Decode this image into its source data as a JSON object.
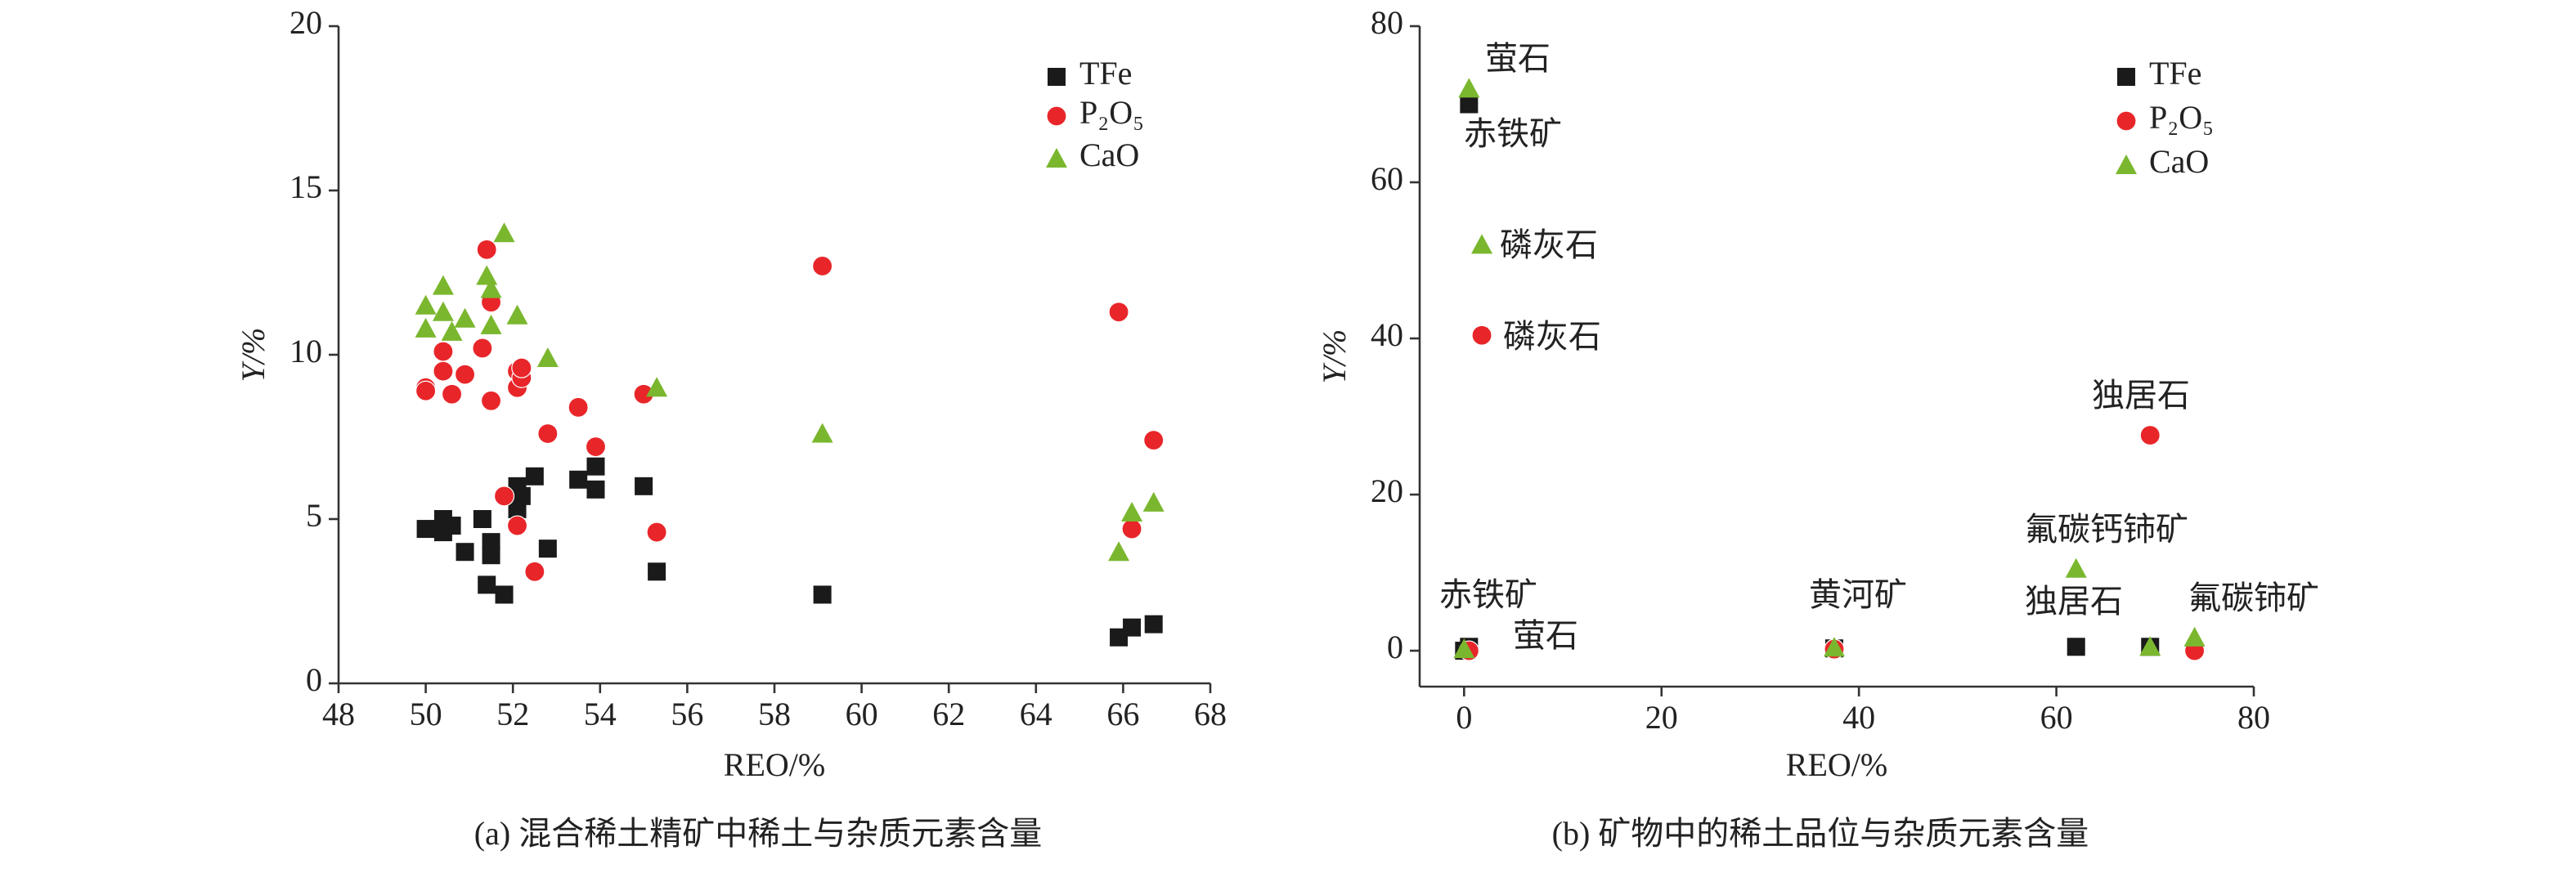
{
  "chart_data": [
    {
      "type": "scatter",
      "xlabel": "REO/%",
      "ylabel": "Y/%",
      "caption": "(a) 混合稀土精矿中稀土与杂质元素含量",
      "xlim": [
        48,
        68
      ],
      "xticks": [
        48,
        50,
        52,
        54,
        56,
        58,
        60,
        62,
        64,
        66,
        68
      ],
      "ylim": [
        0,
        20
      ],
      "yticks": [
        0,
        5,
        10,
        15,
        20
      ],
      "legend": "upper right",
      "series": [
        {
          "name": "TFe",
          "color": "#1a1a1a",
          "marker": "square",
          "x": [
            50.0,
            50.4,
            50.4,
            50.6,
            50.9,
            51.3,
            51.4,
            51.5,
            51.5,
            51.8,
            52.1,
            52.1,
            52.2,
            52.5,
            52.8,
            53.5,
            53.9,
            53.9,
            55.0,
            55.3,
            59.1,
            65.9,
            66.2,
            66.7
          ],
          "values": [
            4.7,
            5.0,
            4.6,
            4.8,
            4.0,
            5.0,
            3.0,
            4.3,
            3.9,
            2.7,
            5.3,
            6.0,
            5.7,
            6.3,
            4.1,
            6.2,
            6.6,
            5.9,
            6.0,
            3.4,
            2.7,
            1.4,
            1.7,
            1.8
          ]
        },
        {
          "name": "P₂O₅",
          "color": "#e8262a",
          "marker": "circle",
          "x": [
            50.0,
            50.0,
            50.4,
            50.4,
            50.6,
            50.9,
            51.3,
            51.4,
            51.5,
            51.5,
            51.8,
            52.1,
            52.1,
            52.1,
            52.2,
            52.2,
            52.5,
            52.8,
            53.5,
            53.9,
            55.0,
            55.3,
            59.1,
            65.9,
            66.2,
            66.7
          ],
          "values": [
            9.0,
            8.9,
            10.1,
            9.5,
            8.8,
            9.4,
            10.2,
            13.2,
            11.6,
            8.6,
            5.7,
            9.0,
            4.8,
            9.5,
            9.3,
            9.6,
            3.4,
            7.6,
            8.4,
            7.2,
            8.8,
            4.6,
            12.7,
            11.3,
            4.7,
            7.4
          ]
        },
        {
          "name": "CaO",
          "color": "#7ab72e",
          "marker": "triangle",
          "x": [
            50.0,
            50.0,
            50.4,
            50.4,
            50.6,
            50.9,
            51.4,
            51.5,
            51.5,
            51.8,
            52.1,
            52.8,
            55.3,
            59.1,
            65.9,
            66.2,
            66.7
          ],
          "values": [
            11.5,
            10.8,
            12.1,
            11.3,
            10.7,
            11.1,
            12.4,
            12.0,
            10.9,
            13.7,
            11.2,
            9.9,
            9.0,
            7.6,
            4.0,
            5.2,
            5.5
          ]
        }
      ]
    },
    {
      "type": "scatter",
      "xlabel": "REO/%",
      "ylabel": "Y/%",
      "caption": "(b) 矿物中的稀土品位与杂质元素含量",
      "xlim": [
        -4.5,
        80
      ],
      "xticks": [
        0,
        20,
        40,
        60,
        80
      ],
      "ylim": [
        -4.6,
        80
      ],
      "yticks": [
        0,
        20,
        40,
        60,
        80
      ],
      "legend": "upper right",
      "series": [
        {
          "name": "TFe",
          "color": "#1a1a1a",
          "marker": "square",
          "x": [
            0.5,
            0,
            0.5,
            37.5,
            62,
            69.5
          ],
          "values": [
            70,
            0,
            0.5,
            0.3,
            0.5,
            0.5
          ]
        },
        {
          "name": "P₂O₅",
          "color": "#e8262a",
          "marker": "circle",
          "x": [
            0.5,
            1.8,
            37.5,
            69.5,
            74
          ],
          "values": [
            0,
            40.4,
            0.2,
            27.6,
            0
          ]
        },
        {
          "name": "CaO",
          "color": "#7ab72e",
          "marker": "triangle",
          "x": [
            0.5,
            1.8,
            0,
            37.5,
            62,
            69.5,
            74
          ],
          "values": [
            72,
            52,
            0.2,
            0.4,
            10.5,
            0.5,
            1.7
          ]
        }
      ],
      "annotations": [
        "萤石",
        "赤铁矿",
        "磷灰石",
        "磷灰石",
        "独居石",
        "氟碳钙铈矿",
        "赤铁矿",
        "萤石",
        "黄河矿",
        "独居石",
        "氟碳铈矿"
      ]
    }
  ]
}
